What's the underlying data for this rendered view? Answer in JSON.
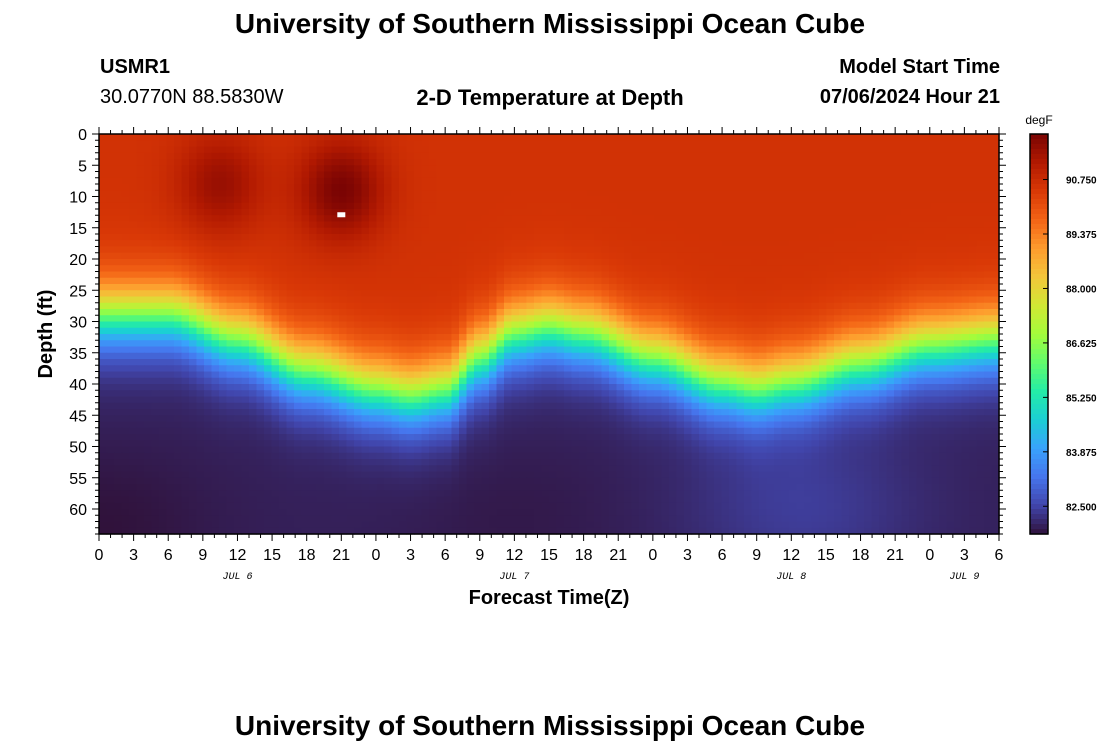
{
  "header": {
    "title": "University of Southern Mississippi Ocean Cube",
    "station_id": "USMR1",
    "coordinates": "30.0770N  88.5830W",
    "subtitle": "2-D Temperature at Depth",
    "model_start_label": "Model Start Time",
    "model_start_value": "07/06/2024 Hour 21",
    "footer_title": "University of Southern Mississippi Ocean Cube"
  },
  "colors": {
    "ramp": [
      "#30123b",
      "#4145ab",
      "#4675ed",
      "#39a2fc",
      "#1bcfd4",
      "#24eca6",
      "#61fc6c",
      "#a4fc3b",
      "#d1e834",
      "#f3c63a",
      "#fe9b2d",
      "#f36315",
      "#d93806",
      "#b11901",
      "#7a0403"
    ]
  },
  "chart_data": {
    "type": "heatmap",
    "title": "2-D Temperature at Depth",
    "xlabel": "Forecast Time(Z)",
    "ylabel": "Depth (ft)",
    "colorbar_unit": "degF",
    "x_range_hours": [
      0,
      78
    ],
    "x_tick_step_hours": 3,
    "x_tick_labels": [
      "0",
      "3",
      "6",
      "9",
      "12",
      "15",
      "18",
      "21",
      "0",
      "3",
      "6",
      "9",
      "12",
      "15",
      "18",
      "21",
      "0",
      "3",
      "6",
      "9",
      "12",
      "15",
      "18",
      "21",
      "0",
      "3",
      "6"
    ],
    "date_labels": [
      {
        "text": "JUL 6",
        "hour": 12
      },
      {
        "text": "JUL 7",
        "hour": 36
      },
      {
        "text": "JUL 8",
        "hour": 60
      },
      {
        "text": "JUL 9",
        "hour": 75
      }
    ],
    "y_range_ft": [
      0,
      64
    ],
    "y_ticks": [
      0,
      5,
      10,
      15,
      20,
      25,
      30,
      35,
      40,
      45,
      50,
      55,
      60
    ],
    "colorbar_range": [
      81.8,
      91.9
    ],
    "colorbar_ticks": [
      82.5,
      83.875,
      85.25,
      86.625,
      88.0,
      89.375,
      90.75
    ],
    "colorbar_tick_labels": [
      "82.500",
      "83.875",
      "85.250",
      "86.625",
      "88.000",
      "89.375",
      "90.750"
    ],
    "thermocline_depth_ft_by_hour": [
      [
        0,
        29
      ],
      [
        6,
        29
      ],
      [
        12,
        33
      ],
      [
        18,
        38
      ],
      [
        24,
        41
      ],
      [
        27,
        42
      ],
      [
        30,
        41
      ],
      [
        33,
        36
      ],
      [
        36,
        32
      ],
      [
        39,
        31
      ],
      [
        42,
        32
      ],
      [
        48,
        36
      ],
      [
        54,
        40
      ],
      [
        57,
        41
      ],
      [
        60,
        40
      ],
      [
        66,
        37
      ],
      [
        72,
        34
      ],
      [
        78,
        33
      ]
    ],
    "surface_temp_degF": 90.6,
    "deep_temp_degF": 82.0,
    "warm_cores": [
      {
        "hour": 10.5,
        "depth_ft": 8,
        "temp_degF": 91.5
      },
      {
        "hour": 21,
        "depth_ft": 9,
        "temp_degF": 91.9
      }
    ],
    "cold_cores": [
      {
        "hour": 0,
        "depth_ft": 63,
        "temp_degF": 81.8
      },
      {
        "hour": 36,
        "depth_ft": 62,
        "temp_degF": 81.9
      },
      {
        "hour": 61,
        "depth_ft": 60,
        "temp_degF": 82.4
      }
    ],
    "marker": {
      "hour": 21,
      "depth_ft": 13
    }
  }
}
